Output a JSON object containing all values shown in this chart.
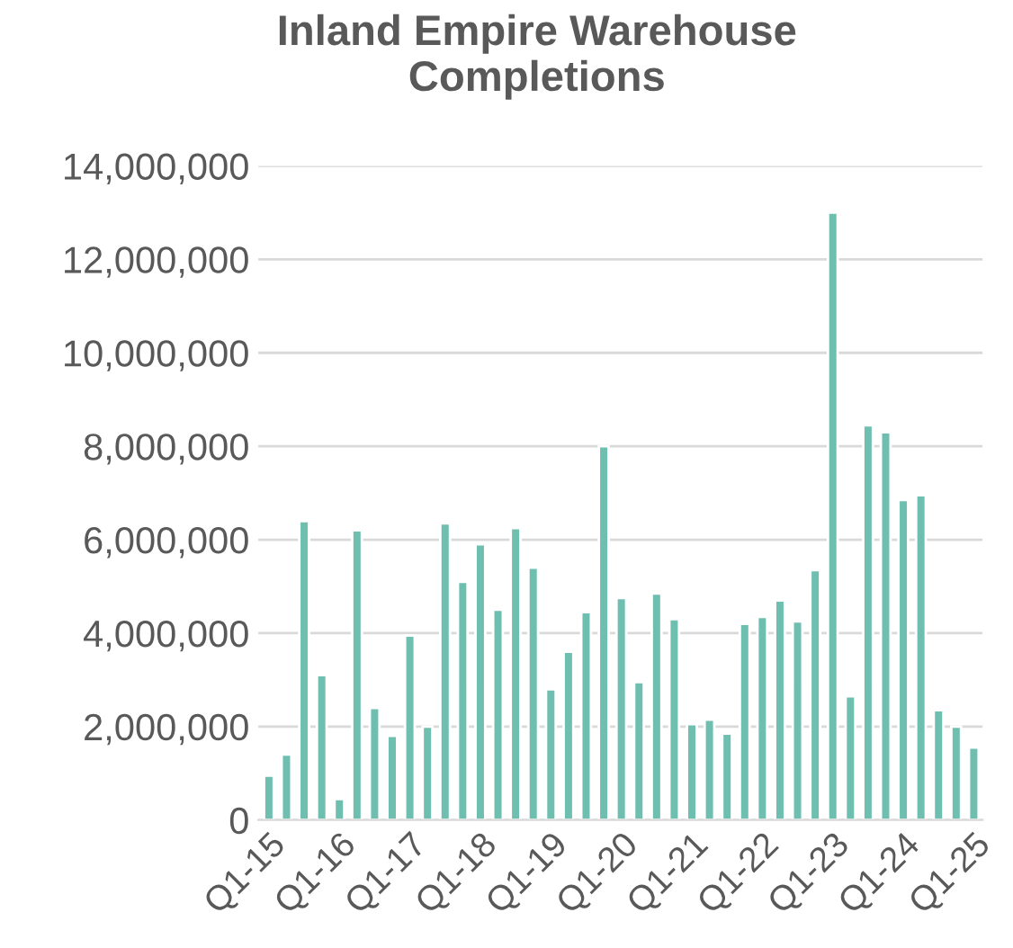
{
  "chart_data": {
    "type": "bar",
    "title": "Inland Empire Warehouse Completions",
    "categories": [
      "Q1-15",
      null,
      null,
      null,
      "Q1-16",
      null,
      null,
      null,
      "Q1-17",
      null,
      null,
      null,
      "Q1-18",
      null,
      null,
      null,
      "Q1-19",
      null,
      null,
      null,
      "Q1-20",
      null,
      null,
      null,
      "Q1-21",
      null,
      null,
      null,
      "Q1-22",
      null,
      null,
      null,
      "Q1-23",
      null,
      null,
      null,
      "Q1-24",
      null,
      null,
      null,
      "Q1-25"
    ],
    "values": [
      950000,
      1400000,
      6400000,
      3100000,
      450000,
      6200000,
      2400000,
      1800000,
      3950000,
      2000000,
      6350000,
      5100000,
      5900000,
      4500000,
      6250000,
      5400000,
      2800000,
      3600000,
      4450000,
      8000000,
      4750000,
      2950000,
      4850000,
      4300000,
      2050000,
      2150000,
      1850000,
      4200000,
      4350000,
      4700000,
      4250000,
      5350000,
      13000000,
      2650000,
      8450000,
      8300000,
      6850000,
      6950000,
      2350000,
      2000000,
      1550000
    ],
    "color": "#6fbfb1",
    "ylim": [
      0,
      14000000
    ],
    "yticks": [
      {
        "value": 0,
        "label": "0"
      },
      {
        "value": 2000000,
        "label": "2,000,000"
      },
      {
        "value": 4000000,
        "label": "4,000,000"
      },
      {
        "value": 6000000,
        "label": "6,000,000"
      },
      {
        "value": 8000000,
        "label": "8,000,000"
      },
      {
        "value": 10000000,
        "label": "10,000,000"
      },
      {
        "value": 12000000,
        "label": "12,000,000"
      },
      {
        "value": 14000000,
        "label": "14,000,000"
      }
    ],
    "grid": "y"
  }
}
